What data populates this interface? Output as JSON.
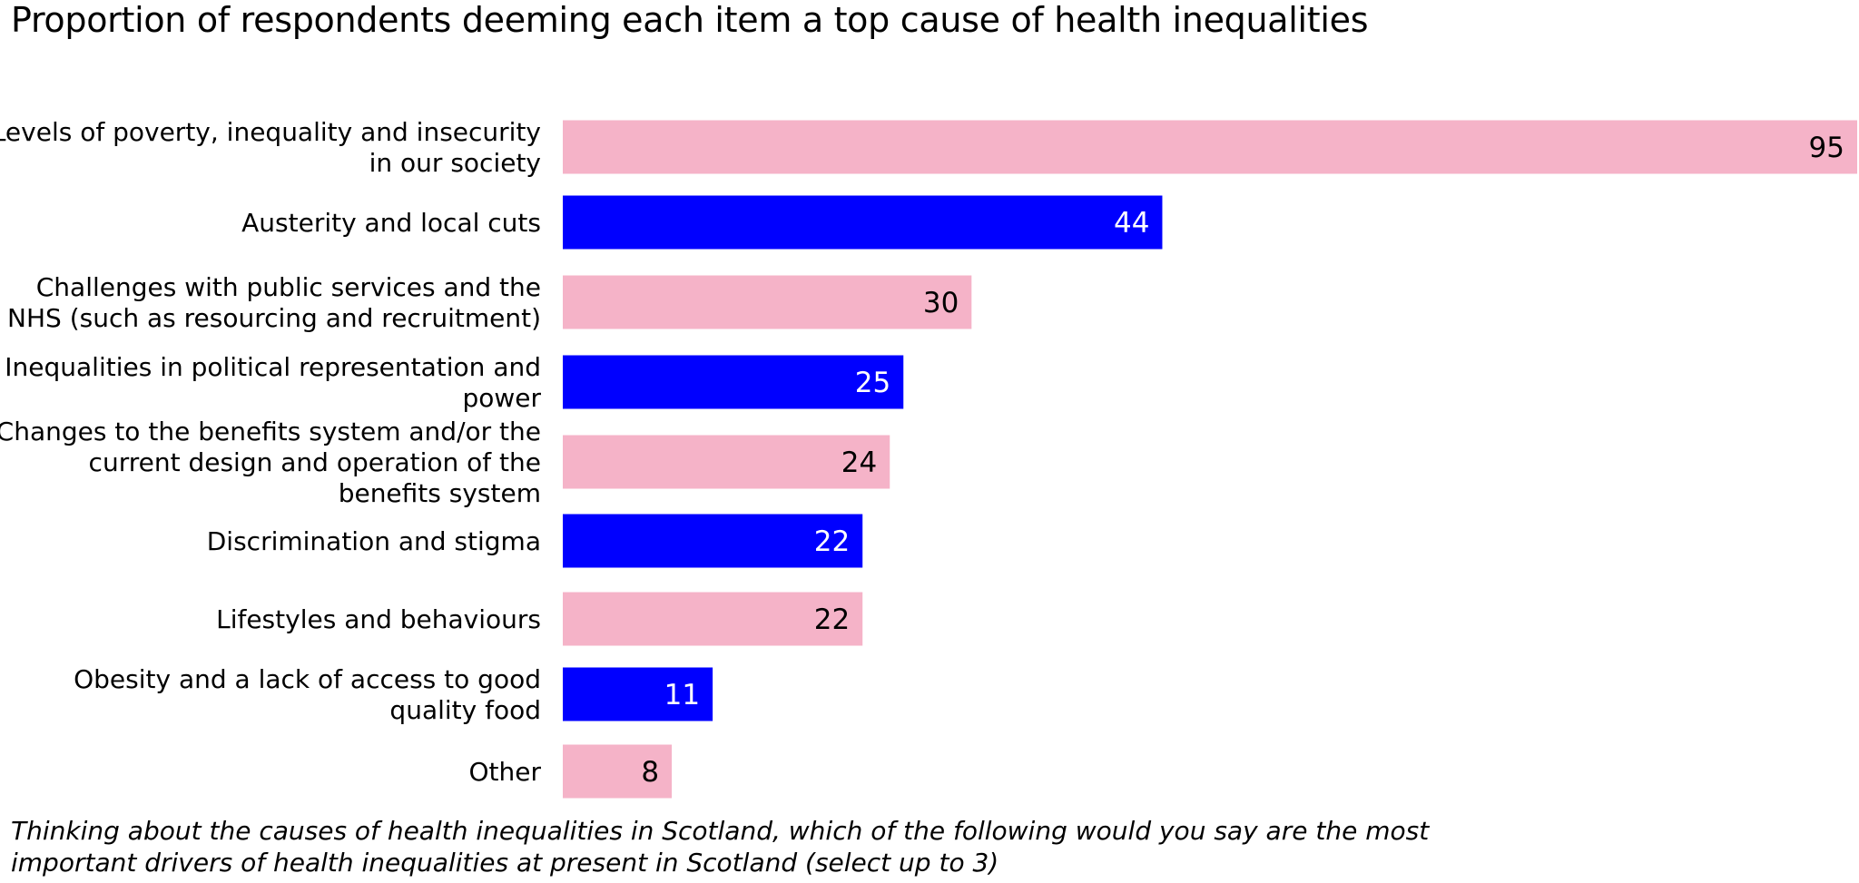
{
  "chart_data": {
    "type": "bar",
    "orientation": "horizontal",
    "title": "Proportion of respondents deeming each item a top cause of health inequalities",
    "note_lines": [
      "Thinking about the causes of health inequalities in Scotland, which of the following would you say are the most",
      "important drivers of health inequalities at present in Scotland (select up to 3)"
    ],
    "categories": [
      [
        "Levels of poverty, inequality and insecurity",
        "in our society"
      ],
      [
        "Austerity and local cuts"
      ],
      [
        "Challenges with public services and the",
        "NHS (such as resourcing and recruitment)"
      ],
      [
        "Inequalities in political representation and",
        "power"
      ],
      [
        "Changes to the benefits system and/or the",
        "current design and operation of the",
        "benefits system"
      ],
      [
        "Discrimination and stigma"
      ],
      [
        "Lifestyles and behaviours"
      ],
      [
        "Obesity and a lack of access to good",
        "quality food"
      ],
      [
        "Other"
      ]
    ],
    "values": [
      95,
      44,
      30,
      25,
      24,
      22,
      22,
      11,
      8
    ],
    "bar_colors": [
      "#f5b3c8",
      "#0000ff",
      "#f5b3c8",
      "#0000ff",
      "#f5b3c8",
      "#0000ff",
      "#f5b3c8",
      "#0000ff",
      "#f5b3c8"
    ],
    "value_label_colors": [
      "#000000",
      "#ffffff",
      "#000000",
      "#ffffff",
      "#000000",
      "#ffffff",
      "#000000",
      "#ffffff",
      "#000000"
    ],
    "xlim": [
      0,
      95
    ],
    "axis_visible": false,
    "grid": false,
    "legend": "none",
    "data_labels": "inside-end"
  }
}
